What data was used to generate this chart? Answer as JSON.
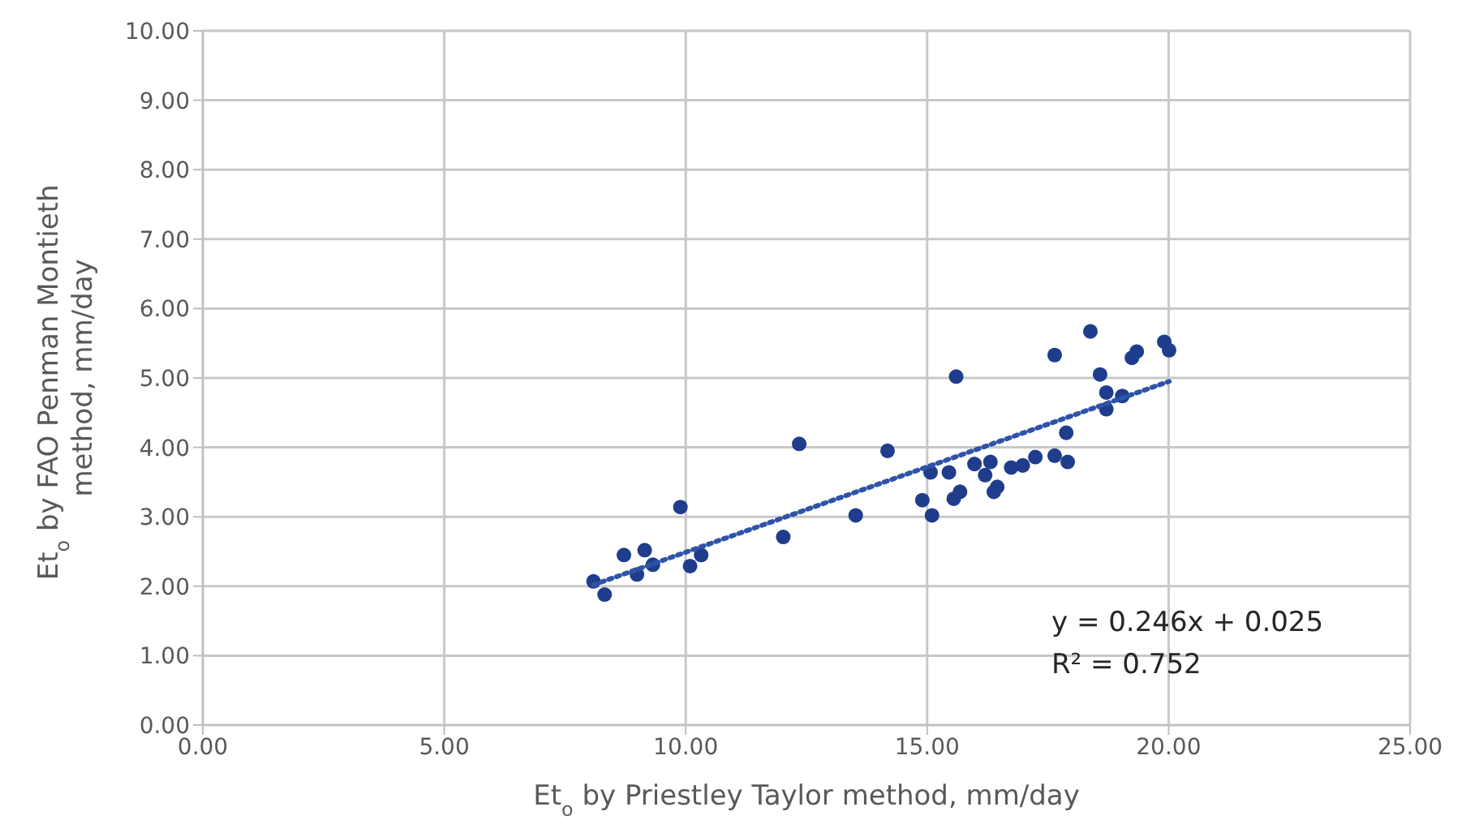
{
  "chart_data": {
    "type": "scatter",
    "xlabel": "Et$_{o}$ by Priestley Taylor method,  mm/day",
    "ylabel": "Et$_{o}$ by FAO Penman Montieth method, mm/day",
    "x": [
      8.09,
      8.32,
      8.72,
      9.15,
      8.99,
      9.32,
      9.89,
      10.09,
      10.32,
      12.02,
      12.35,
      13.52,
      14.18,
      14.9,
      15.1,
      15.07,
      15.45,
      15.55,
      15.68,
      15.6,
      15.98,
      16.31,
      16.2,
      16.45,
      16.38,
      16.74,
      16.98,
      17.24,
      17.64,
      17.88,
      17.91,
      17.64,
      18.38,
      18.58,
      18.71,
      19.04,
      18.71,
      19.24,
      19.34,
      19.91,
      20.01
    ],
    "series": [
      {
        "color": "#1f3d8c",
        "marker": "circle",
        "values": [
          2.07,
          1.88,
          2.45,
          2.52,
          2.17,
          2.31,
          3.14,
          2.29,
          2.45,
          2.71,
          4.05,
          3.02,
          3.95,
          3.24,
          3.02,
          3.64,
          3.64,
          3.26,
          3.36,
          5.02,
          3.76,
          3.79,
          3.6,
          3.43,
          3.36,
          3.71,
          3.74,
          3.86,
          3.88,
          4.21,
          3.79,
          5.33,
          5.67,
          5.05,
          4.79,
          4.74,
          4.55,
          5.29,
          5.38,
          5.52,
          5.4
        ]
      },
      {
        "type": "line",
        "color": "#2e54a8",
        "line_style": "dotted",
        "marker": "none",
        "x": [
          8.09,
          20.01
        ],
        "values": [
          2.02,
          4.95
        ]
      }
    ],
    "xlim": [
      0,
      25
    ],
    "xticks": [
      {
        "value": 0,
        "label": "0.00"
      },
      {
        "value": 5,
        "label": "5.00"
      },
      {
        "value": 10,
        "label": "10.00"
      },
      {
        "value": 15,
        "label": "15.00"
      },
      {
        "value": 20,
        "label": "20.00"
      },
      {
        "value": 25,
        "label": "25.00"
      }
    ],
    "ylim": [
      0,
      10
    ],
    "yticks": [
      {
        "value": 0,
        "label": "0.00"
      },
      {
        "value": 1,
        "label": "1.00"
      },
      {
        "value": 2,
        "label": "2.00"
      },
      {
        "value": 3,
        "label": "3.00"
      },
      {
        "value": 4,
        "label": "4.00"
      },
      {
        "value": 5,
        "label": "5.00"
      },
      {
        "value": 6,
        "label": "6.00"
      },
      {
        "value": 7,
        "label": "7.00"
      },
      {
        "value": 8,
        "label": "8.00"
      },
      {
        "value": 9,
        "label": "9.00"
      },
      {
        "value": 10,
        "label": "10.00"
      }
    ],
    "grid": true,
    "annotations": [
      "y = 0.246x + 0.025",
      "R² = 0.752"
    ]
  }
}
